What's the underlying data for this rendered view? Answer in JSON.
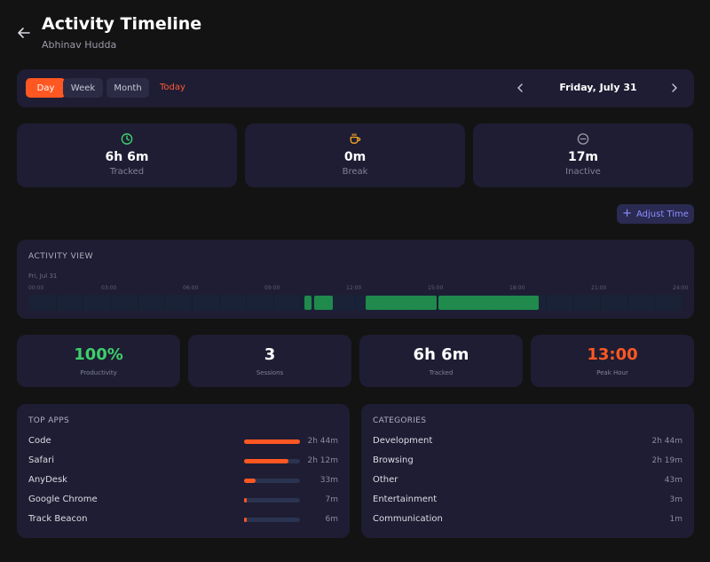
{
  "header": {
    "title": "Activity Timeline",
    "subtitle": "Abhinav Hudda"
  },
  "toolbar": {
    "day": "Day",
    "week": "Week",
    "month": "Month",
    "today": "Today",
    "date": "Friday, July 31"
  },
  "summary": [
    {
      "value": "6h 6m",
      "label": "Tracked",
      "icon": "clock-icon",
      "color": "#3ecf6a"
    },
    {
      "value": "0m",
      "label": "Break",
      "icon": "coffee-icon",
      "color": "#f5a623"
    },
    {
      "value": "17m",
      "label": "Inactive",
      "icon": "minus-circle-icon",
      "color": "#9a9aa8"
    }
  ],
  "adjust_label": "Adjust Time",
  "activity": {
    "title": "ACTIVITY VIEW",
    "day_label": "Fri, Jul 31",
    "ticks": [
      "00:00",
      "03:00",
      "06:00",
      "09:00",
      "12:00",
      "15:00",
      "18:00",
      "21:00",
      "24:00"
    ],
    "blocks": [
      {
        "start": "10:08",
        "end": "10:25"
      },
      {
        "start": "10:30",
        "end": "11:12"
      },
      {
        "start": "12:24",
        "end": "15:00"
      },
      {
        "start": "15:03",
        "end": "18:45"
      }
    ]
  },
  "kpis": [
    {
      "value": "100%",
      "label": "Productivity",
      "color": "#3ecf6a"
    },
    {
      "value": "3",
      "label": "Sessions",
      "color": "#ffffff"
    },
    {
      "value": "6h 6m",
      "label": "Tracked",
      "color": "#ffffff"
    },
    {
      "value": "13:00",
      "label": "Peak Hour",
      "color": "#ff5722"
    }
  ],
  "top_apps": {
    "title": "TOP APPS",
    "items": [
      {
        "name": "Code",
        "time": "2h 44m",
        "share": 1.0
      },
      {
        "name": "Safari",
        "time": "2h 12m",
        "share": 0.8
      },
      {
        "name": "AnyDesk",
        "time": "33m",
        "share": 0.2
      },
      {
        "name": "Google Chrome",
        "time": "7m",
        "share": 0.04
      },
      {
        "name": "Track Beacon",
        "time": "6m",
        "share": 0.04
      }
    ]
  },
  "categories": {
    "title": "CATEGORIES",
    "items": [
      {
        "name": "Development",
        "time": "2h 44m"
      },
      {
        "name": "Browsing",
        "time": "2h 19m"
      },
      {
        "name": "Other",
        "time": "43m"
      },
      {
        "name": "Entertainment",
        "time": "3m"
      },
      {
        "name": "Communication",
        "time": "1m"
      }
    ]
  }
}
